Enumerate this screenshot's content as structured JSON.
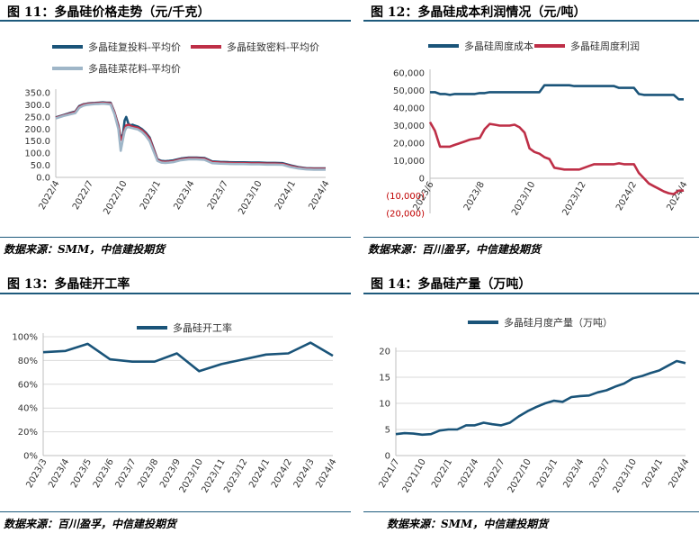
{
  "panels": [
    {
      "title": "图 11：多晶硅价格走势（元/千克）",
      "source": "数据来源：SMM，中信建投期货"
    },
    {
      "title": "图 12：多晶硅成本利润情况（元/吨）",
      "source": "数据来源：百川盈孚，中信建投期货"
    },
    {
      "title": "图 13：多晶硅开工率",
      "source": "数据来源：百川盈孚，中信建投期货"
    },
    {
      "title": "图 14：多晶硅产量（万吨）",
      "source": "数据来源：SMM，中信建投期货"
    }
  ],
  "colors": {
    "rule": "#1e5a7c",
    "navy": "#1a5479",
    "red": "#be2f47",
    "gray": "#9fb6c8",
    "grid": "#d9d9d9",
    "axis": "#bfbfbf"
  },
  "chart_data": [
    {
      "type": "line",
      "xlabels": [
        "2022/4",
        "2022/7",
        "2022/10",
        "2023/1",
        "2023/4",
        "2023/7",
        "2023/10",
        "2024/1",
        "2024/4"
      ],
      "yticks": [
        "0.0",
        "50.0",
        "100.0",
        "150.0",
        "200.0",
        "250.0",
        "300.0",
        "350.0"
      ],
      "ylim": [
        0,
        350
      ],
      "x": [
        0,
        1,
        2,
        2.5,
        3,
        3.5,
        4,
        4.5,
        5,
        5.5,
        6,
        6.5,
        7,
        7.5,
        8,
        8.3,
        8.6,
        8.8,
        9,
        9.3,
        9.6,
        9.8,
        10,
        10.5,
        11,
        11.5,
        12,
        12.5,
        13,
        13.5,
        14,
        14.5,
        15,
        16,
        17,
        18,
        19,
        20,
        21,
        22,
        23,
        24,
        25,
        26,
        27,
        28,
        29,
        30,
        31,
        32,
        33,
        34,
        34.5
      ],
      "series": [
        {
          "name": "多晶硅复投料-平均价",
          "color": "navy",
          "values": [
            248,
            258,
            268,
            272,
            295,
            302,
            305,
            307,
            308,
            309,
            310,
            309,
            309,
            270,
            215,
            160,
            180,
            235,
            250,
            220,
            215,
            218,
            215,
            210,
            200,
            185,
            165,
            120,
            75,
            68,
            67,
            68,
            70,
            78,
            82,
            82,
            80,
            66,
            64,
            63,
            62,
            62,
            61,
            61,
            60,
            60,
            59,
            50,
            42,
            38,
            37,
            37,
            37
          ]
        },
        {
          "name": "多晶硅致密料-平均价",
          "color": "red",
          "values": [
            246,
            256,
            265,
            270,
            292,
            300,
            303,
            305,
            306,
            307,
            308,
            307,
            306,
            268,
            210,
            155,
            170,
            200,
            215,
            218,
            212,
            210,
            208,
            205,
            195,
            180,
            160,
            115,
            72,
            65,
            64,
            65,
            67,
            75,
            79,
            79,
            77,
            63,
            61,
            60,
            59,
            59,
            58,
            58,
            57,
            57,
            56,
            47,
            40,
            36,
            35,
            35,
            35
          ]
        },
        {
          "name": "多晶硅菜花料-平均价",
          "color": "gray",
          "values": [
            244,
            254,
            262,
            266,
            288,
            296,
            300,
            302,
            303,
            304,
            305,
            304,
            302,
            262,
            200,
            110,
            160,
            190,
            205,
            208,
            205,
            204,
            202,
            198,
            188,
            172,
            150,
            108,
            68,
            61,
            60,
            61,
            63,
            71,
            75,
            75,
            73,
            59,
            57,
            56,
            55,
            55,
            54,
            54,
            53,
            53,
            52,
            43,
            37,
            33,
            32,
            32,
            32
          ]
        }
      ]
    },
    {
      "type": "line",
      "xlabels": [
        "2023/6",
        "2023/8",
        "2023/10",
        "2023/12",
        "2024/2",
        "2024/4"
      ],
      "yticks": [
        "(20,000)",
        "(10,000)",
        "0",
        "10,000",
        "20,000",
        "30,000",
        "40,000",
        "50,000",
        "60,000"
      ],
      "ylim": [
        -20000,
        60000
      ],
      "series": [
        {
          "name": "多晶硅周度成本",
          "color": "navy",
          "values": [
            49000,
            49000,
            48000,
            48000,
            47500,
            48000,
            48000,
            48000,
            48000,
            48000,
            48500,
            48500,
            49000,
            49000,
            49000,
            49000,
            49000,
            49000,
            49000,
            49000,
            49000,
            49000,
            49000,
            53000,
            53000,
            53000,
            53000,
            53000,
            53000,
            52500,
            52500,
            52500,
            52500,
            52500,
            52500,
            52500,
            52500,
            52500,
            51500,
            51500,
            51500,
            51500,
            48000,
            47500,
            47500,
            47500,
            47500,
            47500,
            47500,
            47500,
            45000,
            45000
          ]
        },
        {
          "name": "多晶硅周度利润",
          "color": "red",
          "values": [
            32000,
            27000,
            18000,
            18000,
            18000,
            19000,
            20000,
            21000,
            22000,
            22500,
            23000,
            28000,
            31000,
            30500,
            30000,
            30000,
            30000,
            30500,
            29000,
            26000,
            17000,
            15000,
            14000,
            12000,
            11000,
            6000,
            5500,
            5000,
            5000,
            5000,
            5000,
            6000,
            7000,
            8000,
            8000,
            8000,
            8000,
            8000,
            8500,
            8000,
            8000,
            8000,
            3000,
            0,
            -3000,
            -4500,
            -6000,
            -7500,
            -8500,
            -9000,
            -7000,
            -7000
          ]
        }
      ]
    },
    {
      "type": "line",
      "xlabels": [
        "2023/3",
        "2023/4",
        "2023/5",
        "2023/6",
        "2023/7",
        "2023/8",
        "2023/9",
        "2023/10",
        "2023/11",
        "2023/12",
        "2024/1",
        "2024/2",
        "2024/3",
        "2024/4"
      ],
      "yticks": [
        "0%",
        "20%",
        "40%",
        "60%",
        "80%",
        "100%"
      ],
      "ylim": [
        0,
        100
      ],
      "series": [
        {
          "name": "多晶硅开工率",
          "color": "navy",
          "values": [
            87,
            88,
            94,
            81,
            79,
            79,
            86,
            71,
            77,
            81,
            85,
            86,
            95,
            84
          ]
        }
      ]
    },
    {
      "type": "line",
      "xlabels": [
        "2021/7",
        "2021/10",
        "2022/1",
        "2022/4",
        "2022/7",
        "2022/10",
        "2023/1",
        "2023/4",
        "2023/7",
        "2023/10",
        "2024/1",
        "2024/4"
      ],
      "yticks": [
        "0",
        "5",
        "10",
        "15",
        "20"
      ],
      "ylim": [
        0,
        20
      ],
      "series": [
        {
          "name": "多晶硅月度产量（万吨）",
          "color": "navy",
          "values": [
            4.1,
            4.3,
            4.2,
            4.0,
            4.1,
            4.8,
            5.0,
            5.0,
            5.8,
            5.8,
            6.3,
            6.0,
            5.8,
            6.3,
            7.5,
            8.5,
            9.3,
            10.0,
            10.5,
            10.3,
            11.2,
            11.4,
            11.5,
            12.1,
            12.5,
            13.2,
            13.8,
            14.8,
            15.2,
            15.8,
            16.3,
            17.2,
            18.1,
            17.7
          ]
        }
      ]
    }
  ]
}
